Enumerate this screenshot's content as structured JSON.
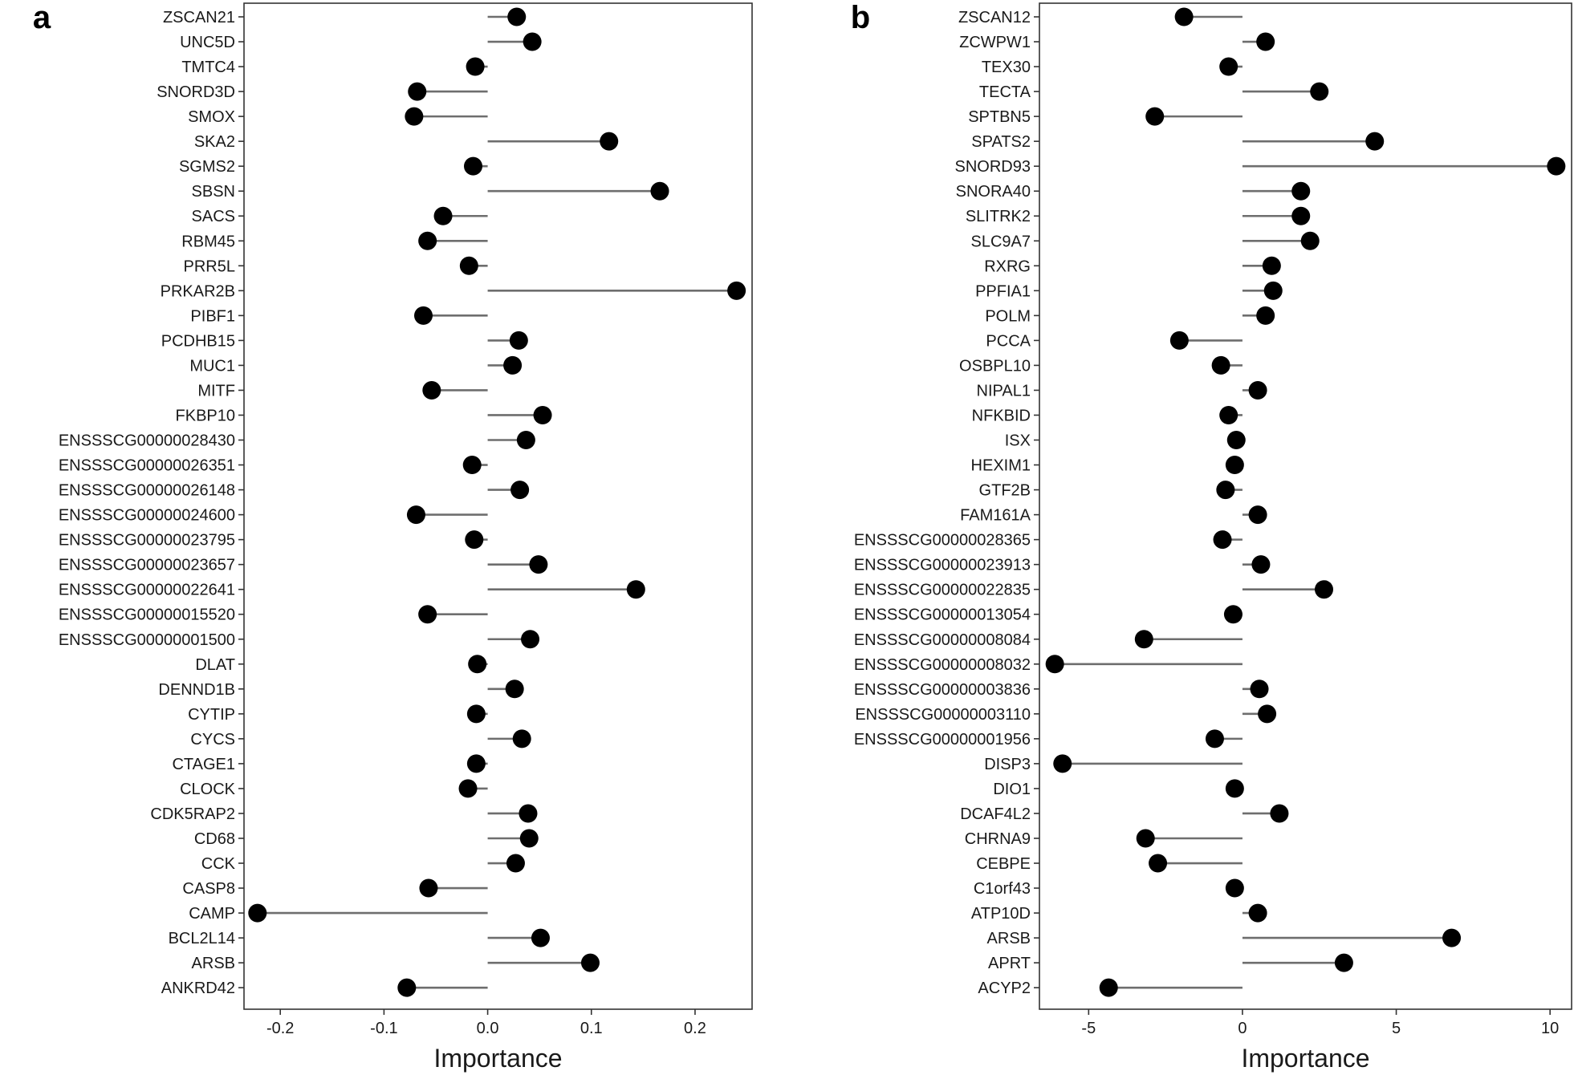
{
  "chart_data": [
    {
      "type": "lollipop",
      "panel_label": "a",
      "xlabel": "Importance",
      "xlim": [
        -0.235,
        0.255
      ],
      "xticks": [
        -0.2,
        -0.1,
        0.0,
        0.1,
        0.2
      ],
      "xtick_labels": [
        "-0.2",
        "-0.1",
        "0.0",
        "0.1",
        "0.2"
      ],
      "baseline": 0,
      "categories": [
        "ZSCAN21",
        "UNC5D",
        "TMTC4",
        "SNORD3D",
        "SMOX",
        "SKA2",
        "SGMS2",
        "SBSN",
        "SACS",
        "RBM45",
        "PRR5L",
        "PRKAR2B",
        "PIBF1",
        "PCDHB15",
        "MUC1",
        "MITF",
        "FKBP10",
        "ENSSSCG00000028430",
        "ENSSSCG00000026351",
        "ENSSSCG00000026148",
        "ENSSSCG00000024600",
        "ENSSSCG00000023795",
        "ENSSSCG00000023657",
        "ENSSSCG00000022641",
        "ENSSSCG00000015520",
        "ENSSSCG00000001500",
        "DLAT",
        "DENND1B",
        "CYTIP",
        "CYCS",
        "CTAGE1",
        "CLOCK",
        "CDK5RAP2",
        "CD68",
        "CCK",
        "CASP8",
        "CAMP",
        "BCL2L14",
        "ARSB",
        "ANKRD42"
      ],
      "values": [
        0.028,
        0.043,
        -0.012,
        -0.068,
        -0.071,
        0.117,
        -0.014,
        0.166,
        -0.043,
        -0.058,
        -0.018,
        0.24,
        -0.062,
        0.03,
        0.024,
        -0.054,
        0.053,
        0.037,
        -0.015,
        0.031,
        -0.069,
        -0.013,
        0.049,
        0.143,
        -0.058,
        0.041,
        -0.01,
        0.026,
        -0.011,
        0.033,
        -0.011,
        -0.019,
        0.039,
        0.04,
        0.027,
        -0.057,
        -0.222,
        0.051,
        0.099,
        -0.078
      ]
    },
    {
      "type": "lollipop",
      "panel_label": "b",
      "xlabel": "Importance",
      "xlim": [
        -6.6,
        10.7
      ],
      "xticks": [
        -5,
        0,
        5,
        10
      ],
      "xtick_labels": [
        "-5",
        "0",
        "5",
        "10"
      ],
      "baseline": 0,
      "categories": [
        "ZSCAN12",
        "ZCWPW1",
        "TEX30",
        "TECTA",
        "SPTBN5",
        "SPATS2",
        "SNORD93",
        "SNORA40",
        "SLITRK2",
        "SLC9A7",
        "RXRG",
        "PPFIA1",
        "POLM",
        "PCCA",
        "OSBPL10",
        "NIPAL1",
        "NFKBID",
        "ISX",
        "HEXIM1",
        "GTF2B",
        "FAM161A",
        "ENSSSCG00000028365",
        "ENSSSCG00000023913",
        "ENSSSCG00000022835",
        "ENSSSCG00000013054",
        "ENSSSCG00000008084",
        "ENSSSCG00000008032",
        "ENSSSCG00000003836",
        "ENSSSCG00000003110",
        "ENSSSCG00000001956",
        "DISP3",
        "DIO1",
        "DCAF4L2",
        "CHRNA9",
        "CEBPE",
        "C1orf43",
        "ATP10D",
        "ARSB",
        "APRT",
        "ACYP2"
      ],
      "values": [
        -1.9,
        0.75,
        -0.45,
        2.5,
        -2.85,
        4.3,
        10.2,
        1.9,
        1.9,
        2.2,
        0.95,
        1.0,
        0.75,
        -2.05,
        -0.7,
        0.5,
        -0.45,
        -0.2,
        -0.25,
        -0.55,
        0.5,
        -0.65,
        0.6,
        2.65,
        -0.3,
        -3.2,
        -6.1,
        0.55,
        0.8,
        -0.9,
        -5.85,
        -0.25,
        1.2,
        -3.15,
        -2.75,
        -0.25,
        0.5,
        6.8,
        3.3,
        -4.35
      ]
    }
  ]
}
